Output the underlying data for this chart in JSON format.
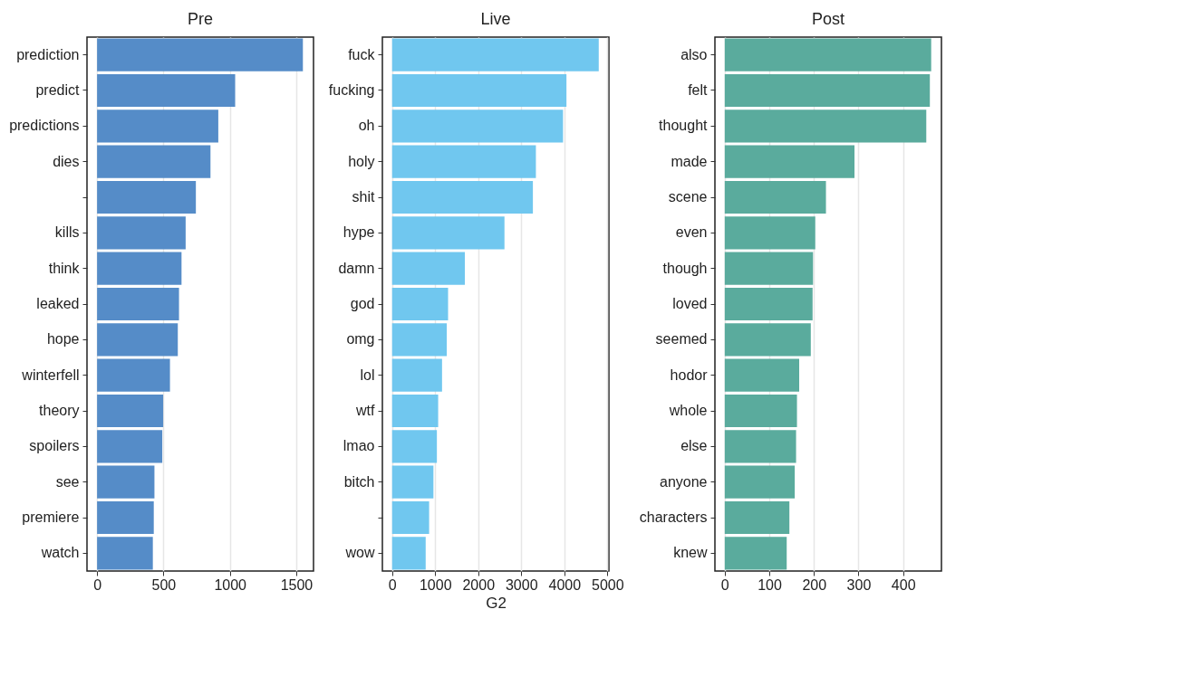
{
  "chart_data": [
    {
      "type": "bar",
      "orientation": "horizontal",
      "title": "Pre",
      "color": "#4f88c6",
      "grid": "x",
      "xlim": [
        -76,
        1630
      ],
      "xticks": [
        0,
        500,
        1000,
        1500
      ],
      "categories": [
        "prediction",
        "predict",
        "predictions",
        "dies",
        null,
        "kills",
        "think",
        "leaked",
        "hope",
        "winterfell",
        "theory",
        "spoilers",
        "see",
        "premiere",
        "watch"
      ],
      "values": [
        1550,
        1040,
        913,
        854,
        744,
        667,
        636,
        617,
        608,
        549,
        498,
        491,
        432,
        427,
        420
      ]
    },
    {
      "type": "bar",
      "orientation": "horizontal",
      "title": "Live",
      "xlabel": "G2",
      "color": "#6bc5ee",
      "grid": "x",
      "xlim": [
        -226,
        5036
      ],
      "xticks": [
        0,
        1000,
        2000,
        3000,
        4000,
        5000
      ],
      "categories": [
        "fuck",
        "fucking",
        "oh",
        "holy",
        "shit",
        "hype",
        "damn",
        "god",
        "omg",
        "lol",
        "wtf",
        "lmao",
        "bitch",
        null,
        "wow"
      ],
      "values": [
        4800,
        4050,
        3970,
        3340,
        3270,
        2610,
        1690,
        1300,
        1270,
        1160,
        1070,
        1040,
        960,
        860,
        780
      ]
    },
    {
      "type": "bar",
      "orientation": "horizontal",
      "title": "Post",
      "color": "#55a89a",
      "grid": "x",
      "xlim": [
        -22,
        486
      ],
      "xticks": [
        0,
        100,
        200,
        300,
        400
      ],
      "categories": [
        "also",
        "felt",
        "thought",
        "made",
        "scene",
        "even",
        "though",
        "loved",
        "seemed",
        "hodor",
        "whole",
        "else",
        "anyone",
        "characters",
        "knew"
      ],
      "values": [
        463,
        460,
        452,
        291,
        227,
        203,
        198,
        197,
        193,
        167,
        162,
        160,
        157,
        145,
        139
      ]
    }
  ]
}
